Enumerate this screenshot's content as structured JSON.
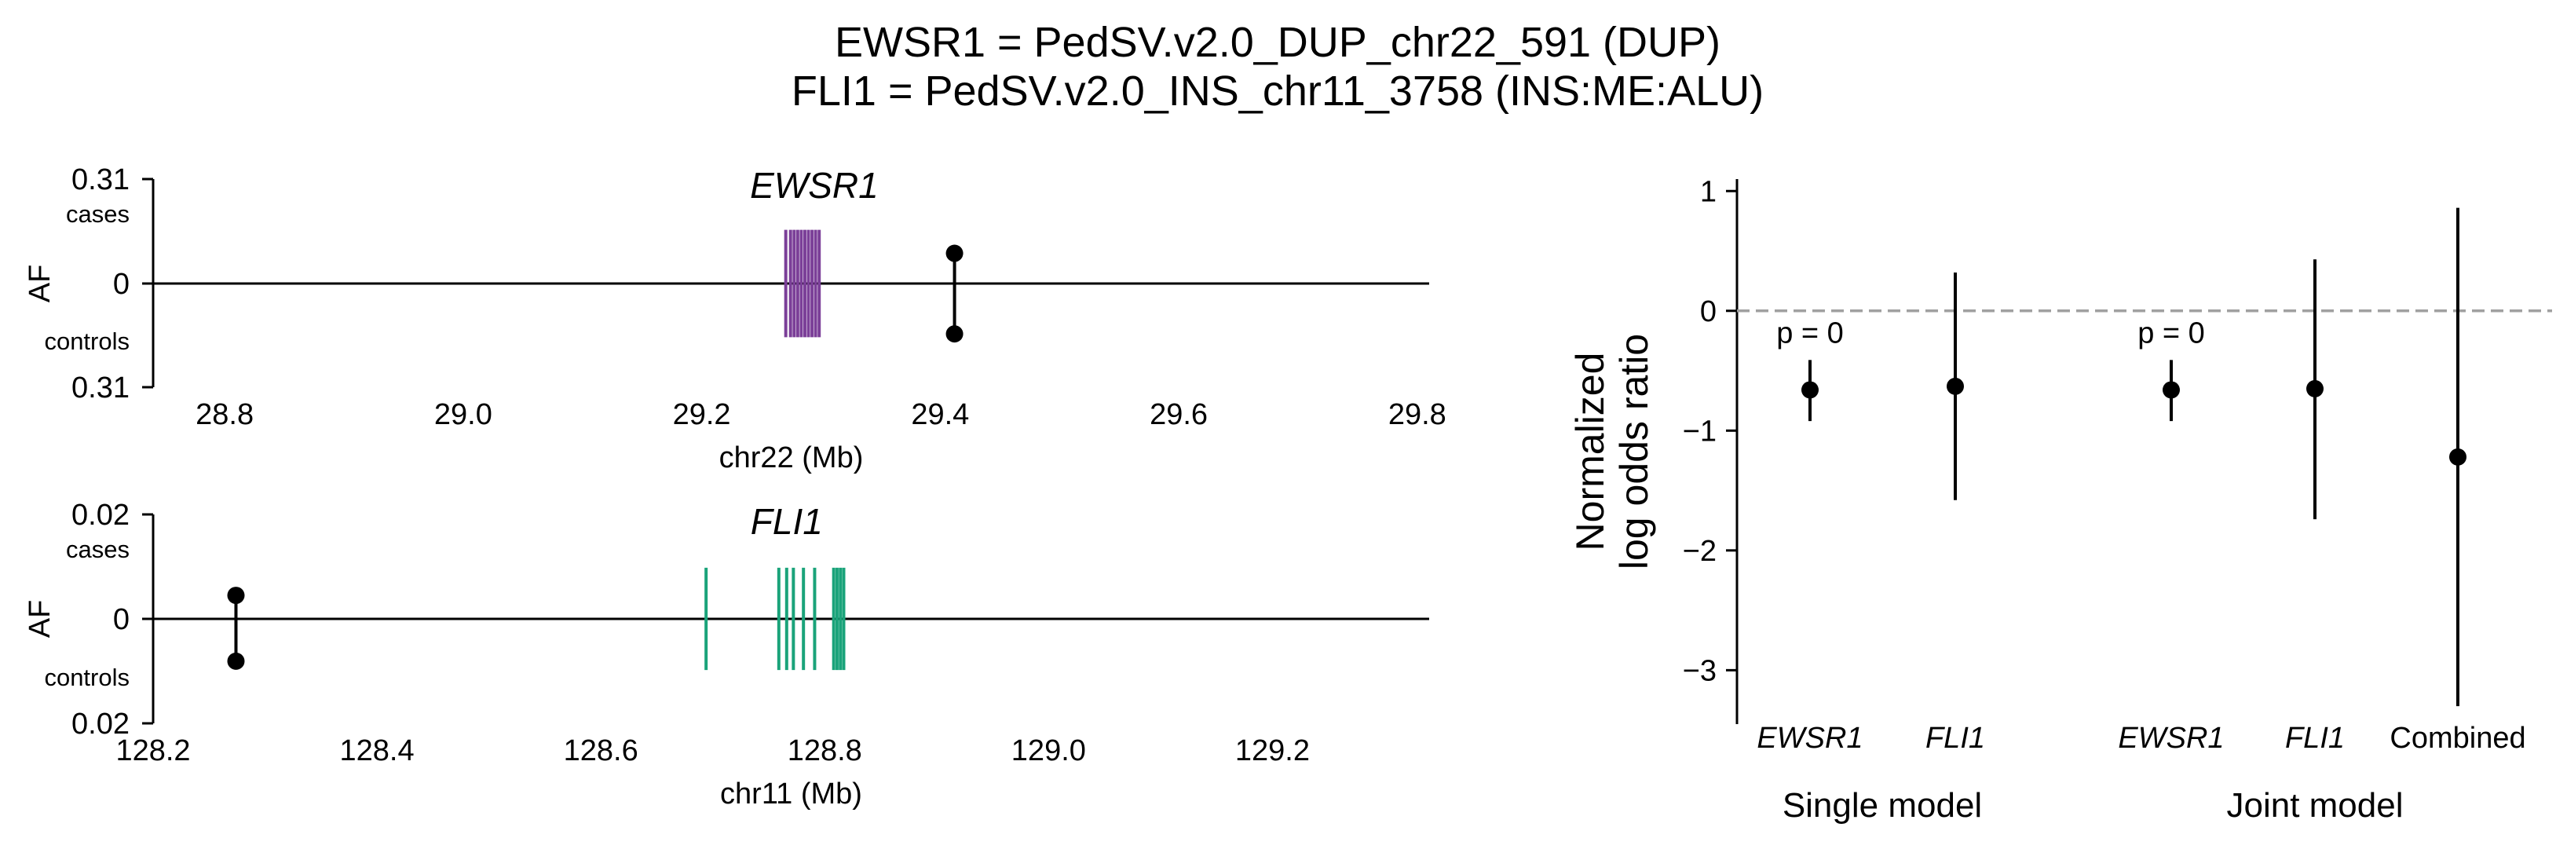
{
  "title": {
    "line1": "EWSR1 = PedSV.v2.0_DUP_chr22_591 (DUP)",
    "line2": "FLI1 = PedSV.v2.0_INS_chr11_3758 (INS:ME:ALU)"
  },
  "chart_data": [
    {
      "type": "locus",
      "gene": "EWSR1",
      "xlabel": "chr22 (Mb)",
      "ylabel": "AF",
      "xlim": [
        28.74,
        29.81
      ],
      "xticks": [
        28.8,
        29.0,
        29.2,
        29.4,
        29.6,
        29.8
      ],
      "xtick_labels": [
        "28.8",
        "29.0",
        "29.2",
        "29.4",
        "29.6",
        "29.8"
      ],
      "ytick_labels": {
        "top": "0.31",
        "zero": "0",
        "bottom": "0.31"
      },
      "side_labels": {
        "cases": "cases",
        "controls": "controls"
      },
      "ylim_abs": 0.31,
      "gene_color": "#7b3f98",
      "exons": [
        29.2705,
        29.2745,
        29.2775,
        29.2805,
        29.2835,
        29.2865,
        29.2895,
        29.2925,
        29.2955,
        29.2985
      ],
      "exon_half_height": 0.16,
      "variant": {
        "pos": 29.412,
        "af_cases": 0.09,
        "af_controls": 0.15
      }
    },
    {
      "type": "locus",
      "gene": "FLI1",
      "xlabel": "chr11 (Mb)",
      "ylabel": "AF",
      "xlim": [
        128.2,
        129.34
      ],
      "xticks": [
        128.2,
        128.4,
        128.6,
        128.8,
        129.0,
        129.2
      ],
      "xtick_labels": [
        "128.2",
        "128.4",
        "128.6",
        "128.8",
        "129.0",
        "129.2"
      ],
      "ytick_labels": {
        "top": "0.02",
        "zero": "0",
        "bottom": "0.02"
      },
      "side_labels": {
        "cases": "cases",
        "controls": "controls"
      },
      "ylim_abs": 0.02,
      "gene_color": "#1aa37a",
      "exons": [
        128.694,
        128.759,
        128.766,
        128.772,
        128.781,
        128.791,
        128.808,
        128.811,
        128.814,
        128.817
      ],
      "exon_half_height": 0.0098,
      "variant": {
        "pos": 128.274,
        "af_cases": 0.0045,
        "af_controls": 0.0081
      }
    },
    {
      "type": "forest",
      "ylabel": [
        "Normalized",
        "log odds ratio"
      ],
      "ylim": [
        -3.45,
        1.1
      ],
      "yticks": [
        1,
        0,
        -1,
        -2,
        -3
      ],
      "ytick_labels": [
        "1",
        "0",
        "−1",
        "−2",
        "−3"
      ],
      "reference_line": 0,
      "points": [
        {
          "label": "EWSR1",
          "group": "Single model",
          "estimate": -0.66,
          "lower": -0.92,
          "upper": -0.41,
          "pvalue_label": "p = 0"
        },
        {
          "label": "FLI1",
          "group": "Single model",
          "estimate": -0.63,
          "lower": -1.58,
          "upper": 0.32,
          "pvalue_label": ""
        },
        {
          "label": "EWSR1",
          "group": "Joint model",
          "estimate": -0.66,
          "lower": -0.92,
          "upper": -0.41,
          "pvalue_label": "p = 0"
        },
        {
          "label": "FLI1",
          "group": "Joint model",
          "estimate": -0.65,
          "lower": -1.74,
          "upper": 0.43,
          "pvalue_label": ""
        },
        {
          "label": "Combined",
          "group": "Joint model",
          "estimate": -1.22,
          "lower": -3.3,
          "upper": 0.86,
          "pvalue_label": ""
        }
      ],
      "groups": [
        "Single model",
        "Joint model"
      ]
    }
  ]
}
